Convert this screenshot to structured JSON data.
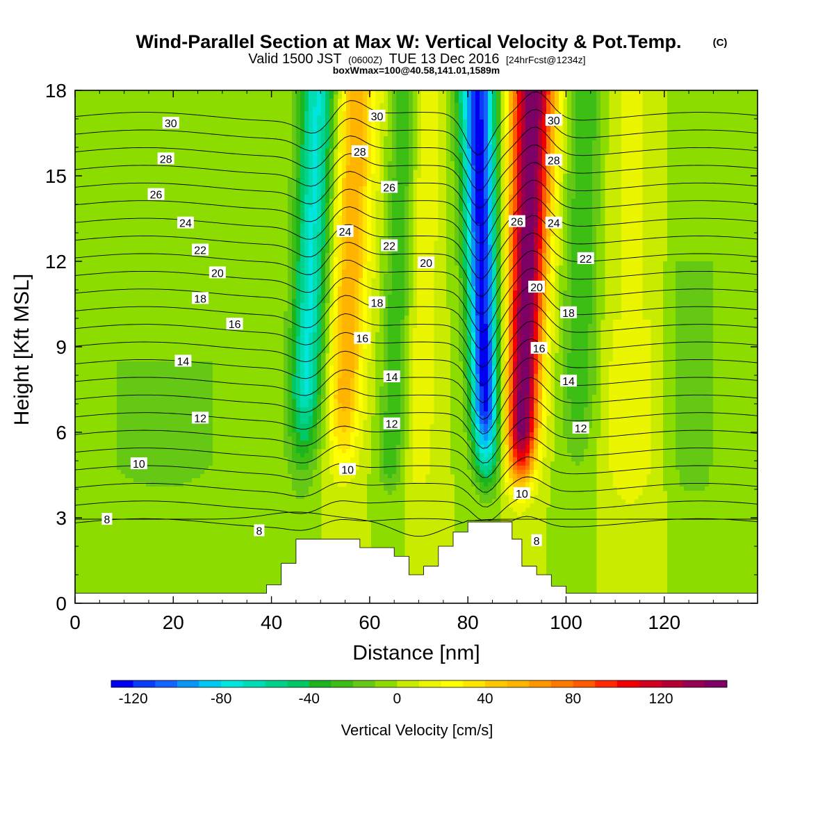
{
  "chart_data": {
    "type": "heatmap",
    "title": "Wind-Parallel Section at Max W: Vertical Velocity & Pot.Temp.",
    "title_mark": "(C)",
    "subtitle": {
      "part1": "Valid 1500 JST",
      "part2": "(0600Z)",
      "part3": "TUE 13 Dec 2016",
      "part4": "[24hrFcst@1234z]"
    },
    "box_label": "boxWmax=100@40.58,141.01,1589m",
    "xlabel": "Distance [nm]",
    "ylabel": "Height [Kft MSL]",
    "xlim": [
      0,
      139
    ],
    "ylim": [
      0,
      18
    ],
    "x_ticks": [
      "0",
      "20",
      "40",
      "60",
      "80",
      "100",
      "120"
    ],
    "y_ticks": [
      "0",
      "3",
      "6",
      "9",
      "12",
      "15",
      "18"
    ],
    "colorbar": {
      "label": "Vertical Velocity [cm/s]",
      "ticks": [
        "-120",
        "-80",
        "-40",
        "0",
        "40",
        "80",
        "120"
      ],
      "min": -130,
      "max": 150,
      "step": 10,
      "colors": [
        "#0000f0",
        "#0a3cf5",
        "#1464ff",
        "#0a96f5",
        "#00c8f0",
        "#00e6dc",
        "#00dcb4",
        "#00d28c",
        "#00c864",
        "#1eb41e",
        "#3cbe14",
        "#64c814",
        "#8cdc00",
        "#c8eb00",
        "#ebf500",
        "#ffff00",
        "#ffe600",
        "#ffc800",
        "#ffb400",
        "#ff9600",
        "#ff7800",
        "#ff5a00",
        "#ff2800",
        "#f00000",
        "#d2001e",
        "#b40032",
        "#960050",
        "#7d0064"
      ]
    },
    "terrain": {
      "x": [
        0,
        39,
        39,
        42,
        42,
        45,
        45,
        58,
        58,
        65,
        65,
        68,
        68,
        71,
        71,
        74,
        74,
        77,
        77,
        80,
        80,
        89,
        89,
        91,
        91,
        94,
        94,
        97,
        97,
        100,
        100,
        139
      ],
      "kft": [
        0.35,
        0.35,
        0.65,
        0.65,
        1.4,
        1.4,
        2.25,
        2.25,
        1.95,
        1.95,
        1.65,
        1.65,
        1.0,
        1.0,
        1.3,
        1.3,
        2.0,
        2.0,
        2.5,
        2.5,
        2.85,
        2.85,
        2.25,
        2.25,
        1.3,
        1.3,
        1.0,
        1.0,
        0.6,
        0.6,
        0.35,
        0.35
      ]
    },
    "isentropes": [
      8,
      9,
      10,
      11,
      12,
      13,
      14,
      15,
      16,
      17,
      18,
      19,
      20,
      21,
      22,
      23,
      24,
      25,
      26,
      27,
      28,
      29,
      30,
      31,
      32
    ],
    "isentrope_labels": [
      {
        "text": "30",
        "x": 19.5,
        "y": 16.85
      },
      {
        "text": "28",
        "x": 18.5,
        "y": 15.6
      },
      {
        "text": "26",
        "x": 16.5,
        "y": 14.35
      },
      {
        "text": "24",
        "x": 22.5,
        "y": 13.35
      },
      {
        "text": "22",
        "x": 25.5,
        "y": 12.4
      },
      {
        "text": "20",
        "x": 29,
        "y": 11.6
      },
      {
        "text": "18",
        "x": 25.5,
        "y": 10.7
      },
      {
        "text": "16",
        "x": 32.5,
        "y": 9.8
      },
      {
        "text": "14",
        "x": 22,
        "y": 8.5
      },
      {
        "text": "12",
        "x": 25.5,
        "y": 6.5
      },
      {
        "text": "10",
        "x": 13,
        "y": 4.9
      },
      {
        "text": "8",
        "x": 6.5,
        "y": 2.95
      },
      {
        "text": "8",
        "x": 37.5,
        "y": 2.55
      },
      {
        "text": "30",
        "x": 61.5,
        "y": 17.1
      },
      {
        "text": "28",
        "x": 58,
        "y": 15.85
      },
      {
        "text": "26",
        "x": 64,
        "y": 14.6
      },
      {
        "text": "24",
        "x": 55,
        "y": 13.05
      },
      {
        "text": "22",
        "x": 64,
        "y": 12.55
      },
      {
        "text": "20",
        "x": 71.5,
        "y": 11.95
      },
      {
        "text": "18",
        "x": 61.5,
        "y": 10.55
      },
      {
        "text": "16",
        "x": 58.5,
        "y": 9.3
      },
      {
        "text": "14",
        "x": 64.5,
        "y": 7.95
      },
      {
        "text": "12",
        "x": 64.5,
        "y": 6.3
      },
      {
        "text": "10",
        "x": 55.5,
        "y": 4.7
      },
      {
        "text": "30",
        "x": 97.5,
        "y": 16.95
      },
      {
        "text": "28",
        "x": 97.5,
        "y": 15.55
      },
      {
        "text": "26",
        "x": 90,
        "y": 13.4
      },
      {
        "text": "24",
        "x": 97.5,
        "y": 13.35
      },
      {
        "text": "22",
        "x": 104,
        "y": 12.1
      },
      {
        "text": "20",
        "x": 94,
        "y": 11.1
      },
      {
        "text": "18",
        "x": 100.5,
        "y": 10.2
      },
      {
        "text": "16",
        "x": 94.5,
        "y": 8.95
      },
      {
        "text": "14",
        "x": 100.5,
        "y": 7.8
      },
      {
        "text": "12",
        "x": 103,
        "y": 6.15
      },
      {
        "text": "10",
        "x": 91,
        "y": 3.85
      },
      {
        "text": "8",
        "x": 94,
        "y": 2.2
      }
    ]
  }
}
